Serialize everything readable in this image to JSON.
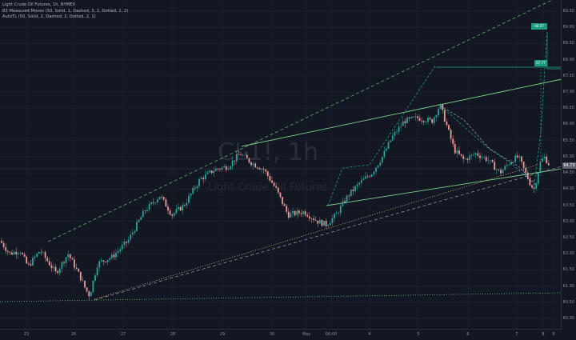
{
  "legend": {
    "line1": "Light Crude Oil Futures, 1h, NYMEX",
    "line2": "B3 Measured Moves (50, Solid, 1, Dashed, 3, 2, Dotted, 1, 2)",
    "line3": "AutoTL (50, Solid, 2, Dashed, 2, Dotted, 2, 1)"
  },
  "watermark": {
    "symbol": "CL1!, 1h",
    "description": "Light Crude Oil Futures"
  },
  "price_axis": {
    "labels": [
      "69.50",
      "69.00",
      "68.50",
      "68.00",
      "67.50",
      "67.00",
      "66.50",
      "66.00",
      "65.50",
      "65.00",
      "64.50",
      "64.00",
      "63.50",
      "63.00",
      "62.50",
      "62.00",
      "61.50",
      "61.00",
      "60.50",
      "60.00"
    ],
    "current_price": "64.73"
  },
  "time_axis": {
    "labels": [
      "23",
      "26",
      "27",
      "28",
      "29",
      "30",
      "May",
      "06:00",
      "4",
      "5",
      "6",
      "7",
      "8",
      "9"
    ]
  },
  "measured_move_boxes": {
    "box1": "",
    "box2": "",
    "box3": "",
    "box4": "",
    "box5": "67.77",
    "box6": "68.97",
    "box7": "68.00"
  },
  "colors": {
    "background": "#131722",
    "up_candle": "#26a69a",
    "down_candle": "#ef9a9a",
    "green_line": "#7ed08a",
    "purple_dash": "#b39ddb"
  },
  "chart_data": {
    "type": "candlestick",
    "title": "Light Crude Oil Futures, 1h, NYMEX",
    "ylim": [
      59.8,
      69.7
    ],
    "anchors": [
      [
        0,
        62.4
      ],
      [
        12,
        62.0
      ],
      [
        25,
        62.1
      ],
      [
        35,
        61.6
      ],
      [
        50,
        62.1
      ],
      [
        70,
        61.4
      ],
      [
        85,
        62.0
      ],
      [
        100,
        61.3
      ],
      [
        107,
        60.9
      ],
      [
        112,
        60.7
      ],
      [
        122,
        61.7
      ],
      [
        140,
        61.9
      ],
      [
        160,
        62.4
      ],
      [
        180,
        63.3
      ],
      [
        200,
        63.8
      ],
      [
        215,
        63.2
      ],
      [
        230,
        63.5
      ],
      [
        250,
        64.3
      ],
      [
        268,
        64.6
      ],
      [
        285,
        64.7
      ],
      [
        300,
        65.1
      ],
      [
        315,
        64.8
      ],
      [
        330,
        64.6
      ],
      [
        345,
        64.0
      ],
      [
        360,
        63.2
      ],
      [
        380,
        63.3
      ],
      [
        397,
        63.0
      ],
      [
        408,
        62.9
      ],
      [
        420,
        63.2
      ],
      [
        435,
        63.8
      ],
      [
        450,
        64.2
      ],
      [
        465,
        64.5
      ],
      [
        478,
        65.0
      ],
      [
        490,
        65.6
      ],
      [
        505,
        66.1
      ],
      [
        522,
        66.2
      ],
      [
        540,
        66.1
      ],
      [
        550,
        66.6
      ],
      [
        558,
        66.0
      ],
      [
        568,
        65.2
      ],
      [
        580,
        64.9
      ],
      [
        595,
        65.1
      ],
      [
        610,
        64.9
      ],
      [
        625,
        64.5
      ],
      [
        640,
        64.9
      ],
      [
        648,
        65.0
      ],
      [
        655,
        64.6
      ],
      [
        664,
        64.1
      ],
      [
        668,
        64.0
      ],
      [
        675,
        64.8
      ],
      [
        680,
        65.0
      ],
      [
        688,
        64.7
      ]
    ]
  }
}
